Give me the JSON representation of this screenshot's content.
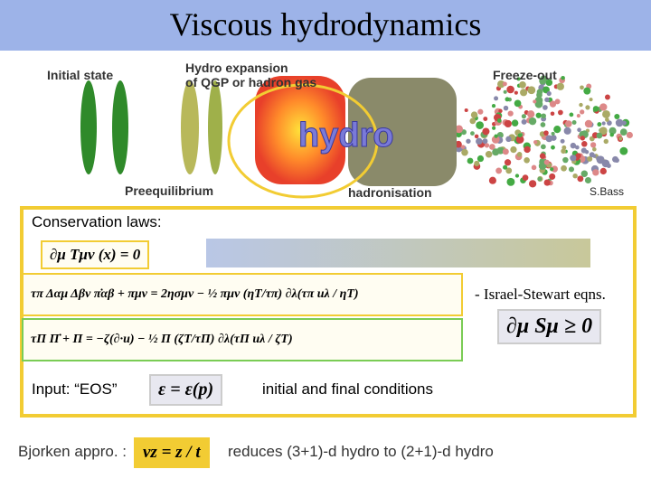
{
  "header": {
    "title": "Viscous hydrodynamics"
  },
  "figure": {
    "labels": [
      "Initial state",
      "Hydro expansion",
      "of QGP or hadron gas",
      "Freeze-out",
      "Preequilibrium",
      "hadronisation",
      "hydro"
    ],
    "credit": "S.Bass"
  },
  "box": {
    "heading": "Conservation laws:",
    "equations": [
      "∂μ Tμν (x) = 0",
      "τπ Δαμ Δβν π̇αβ + πμν = 2ησμν − ½ πμν (ηT/τπ) ∂λ(τπ uλ / ηT)",
      "τΠ Π̇ + Π = −ζ(∂·u) − ½ Π (ζT/τΠ) ∂λ(τΠ uλ / ζT)"
    ],
    "note": "- Israel-Stewart eqns.",
    "entropy": "∂μ Sμ ≥ 0",
    "input_label": "Input:  “EOS”",
    "eos": "ε = ε(p)",
    "conditions": "initial and final conditions"
  },
  "footer": {
    "label": "Bjorken appro. :",
    "equation": "vz = z / t",
    "text": "reduces (3+1)-d hydro to (2+1)-d hydro"
  }
}
